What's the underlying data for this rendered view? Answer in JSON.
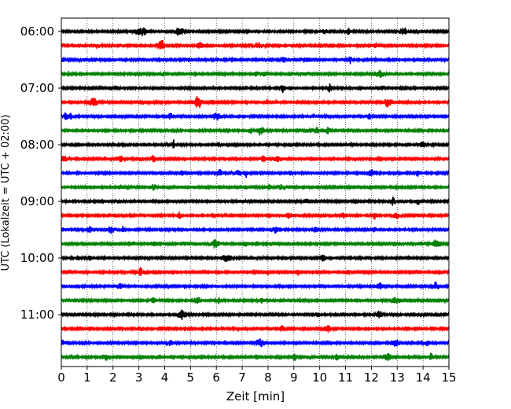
{
  "chart_data": {
    "type": "line",
    "title": "",
    "xlabel": "Zeit  [min]",
    "ylabel": "UTC (Lokalzeit = UTC + 02:00)",
    "xlim": [
      0,
      15
    ],
    "x_ticks": [
      0,
      1,
      2,
      3,
      4,
      5,
      6,
      7,
      8,
      9,
      10,
      11,
      12,
      13,
      14,
      15
    ],
    "y_ticks": [
      "06:00",
      "07:00",
      "08:00",
      "09:00",
      "10:00",
      "11:00"
    ],
    "grid": {
      "vertical_dotted": true
    },
    "trace_colors": [
      "#000000",
      "#ff0000",
      "#0000ff",
      "#008000"
    ],
    "traces": [
      {
        "start": "06:00",
        "color": "#000000"
      },
      {
        "start": "06:15",
        "color": "#ff0000"
      },
      {
        "start": "06:30",
        "color": "#0000ff"
      },
      {
        "start": "06:45",
        "color": "#008000"
      },
      {
        "start": "07:00",
        "color": "#000000"
      },
      {
        "start": "07:15",
        "color": "#ff0000"
      },
      {
        "start": "07:30",
        "color": "#0000ff"
      },
      {
        "start": "07:45",
        "color": "#008000"
      },
      {
        "start": "08:00",
        "color": "#000000"
      },
      {
        "start": "08:15",
        "color": "#ff0000"
      },
      {
        "start": "08:30",
        "color": "#0000ff"
      },
      {
        "start": "08:45",
        "color": "#008000"
      },
      {
        "start": "09:00",
        "color": "#000000"
      },
      {
        "start": "09:15",
        "color": "#ff0000"
      },
      {
        "start": "09:30",
        "color": "#0000ff"
      },
      {
        "start": "09:45",
        "color": "#008000"
      },
      {
        "start": "10:00",
        "color": "#000000"
      },
      {
        "start": "10:15",
        "color": "#ff0000"
      },
      {
        "start": "10:30",
        "color": "#0000ff"
      },
      {
        "start": "10:45",
        "color": "#008000"
      },
      {
        "start": "11:00",
        "color": "#000000"
      },
      {
        "start": "11:15",
        "color": "#ff0000"
      },
      {
        "start": "11:30",
        "color": "#0000ff"
      },
      {
        "start": "11:45",
        "color": "#008000"
      }
    ]
  }
}
